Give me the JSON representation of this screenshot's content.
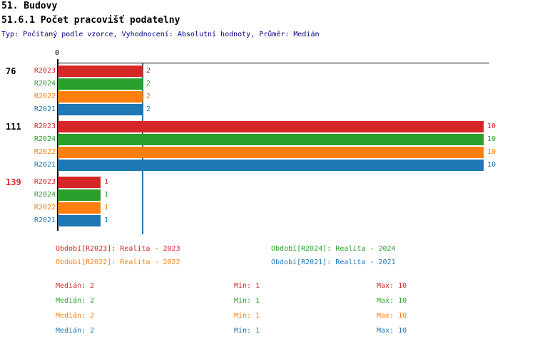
{
  "header": {
    "title1": "51. Budovy",
    "title2": "51.6.1 Počet pracovišť podatelny",
    "subtitle": "Typ: Počítaný podle vzorce, Vyhodnocení: Absolutní hodnoty, Průměr: Medián",
    "subtitle_color": "#000080"
  },
  "chart_data": {
    "type": "bar",
    "orientation": "horizontal",
    "title": "51.6.1 Počet pracovišť podatelny",
    "xlim": [
      0,
      10
    ],
    "x_origin_tick_label": "0",
    "median_reference_line": 2,
    "median_line_color": "#1f77b4",
    "axis_color": "#000000",
    "series_order": [
      "R2023",
      "R2024",
      "R2022",
      "R2021"
    ],
    "series_colors": {
      "R2023": "#d62728",
      "R2024": "#2ca02c",
      "R2022": "#ff7f0e",
      "R2021": "#1f77b4"
    },
    "groups": [
      {
        "label": "76",
        "label_color": "#000000",
        "values": {
          "R2023": 2,
          "R2024": 2,
          "R2022": 2,
          "R2021": 2
        }
      },
      {
        "label": "111",
        "label_color": "#000000",
        "values": {
          "R2023": 10,
          "R2024": 10,
          "R2022": 10,
          "R2021": 10
        }
      },
      {
        "label": "139",
        "label_color": "#d62728",
        "values": {
          "R2023": 1,
          "R2024": 1,
          "R2022": 1,
          "R2021": 1
        }
      }
    ]
  },
  "legend": {
    "items": [
      {
        "series": "R2023",
        "label": "Období[R2023]: Realita - 2023",
        "col": 0,
        "row": 0
      },
      {
        "series": "R2024",
        "label": "Období[R2024]: Realita - 2024",
        "col": 1,
        "row": 0
      },
      {
        "series": "R2022",
        "label": "Období[R2022]: Realita - 2022",
        "col": 0,
        "row": 1
      },
      {
        "series": "R2021",
        "label": "Období[R2021]: Realita - 2021",
        "col": 1,
        "row": 1
      }
    ]
  },
  "stats": {
    "field_labels": {
      "median": "Medián",
      "min": "Min",
      "max": "Max"
    },
    "rows": [
      {
        "series": "R2023",
        "median": "2",
        "min": "1",
        "max": "10"
      },
      {
        "series": "R2024",
        "median": "2",
        "min": "1",
        "max": "10"
      },
      {
        "series": "R2022",
        "median": "2",
        "min": "1",
        "max": "10"
      },
      {
        "series": "R2021",
        "median": "2",
        "min": "1",
        "max": "10"
      }
    ]
  }
}
